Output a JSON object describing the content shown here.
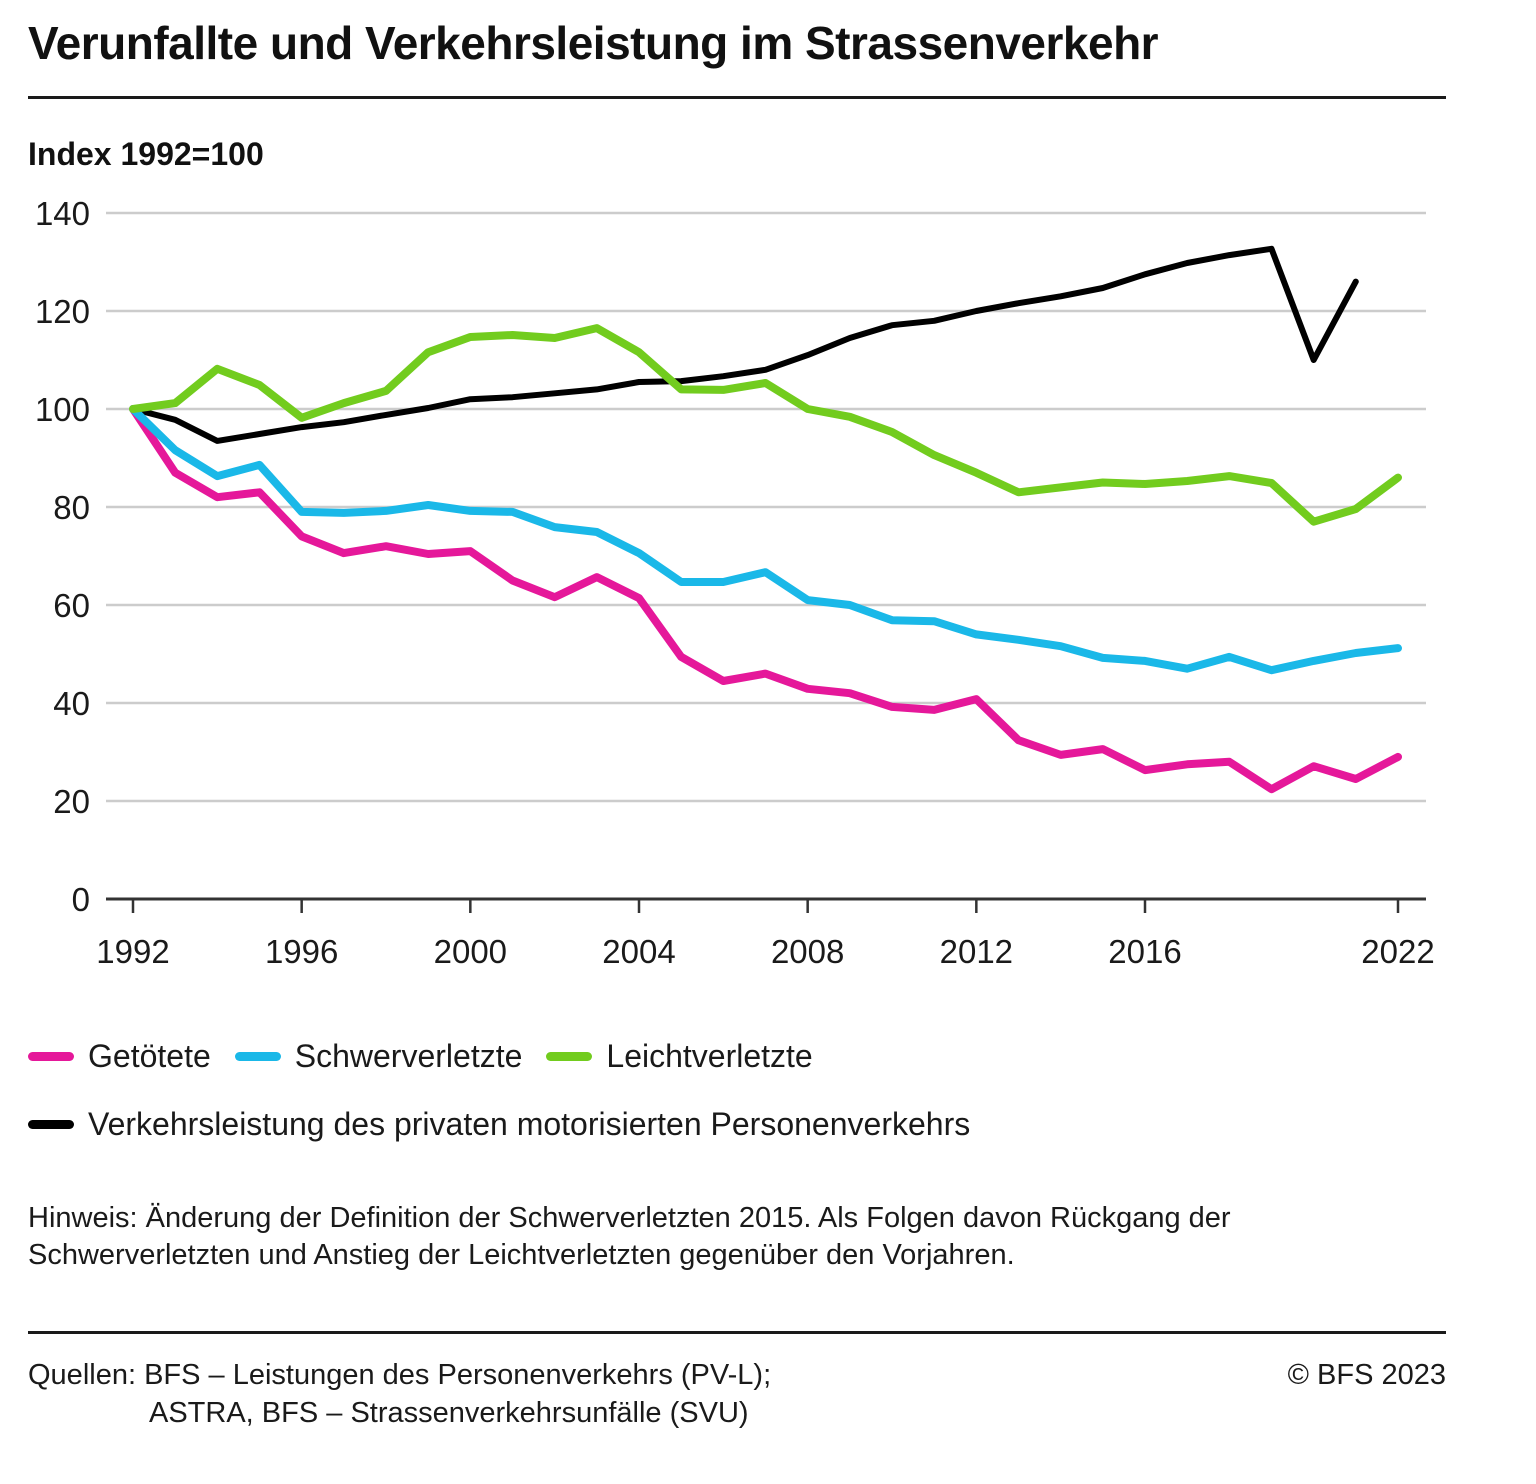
{
  "header": {
    "title": "Verunfallte und Verkehrsleistung im Strassenverkehr",
    "y_axis_label": "Index 1992=100"
  },
  "chart_data": {
    "type": "line",
    "title": "Verunfallte und Verkehrsleistung im Strassenverkehr",
    "xlabel": "",
    "ylabel": "Index 1992=100",
    "ylim": [
      0,
      140
    ],
    "xlim": [
      1992,
      2022
    ],
    "y_ticks": [
      0,
      20,
      40,
      60,
      80,
      100,
      120,
      140
    ],
    "x_ticks": [
      1992,
      1996,
      2000,
      2004,
      2008,
      2012,
      2016,
      2022
    ],
    "grid": "horizontal",
    "legend_position": "bottom",
    "x": [
      1992,
      1993,
      1994,
      1995,
      1996,
      1997,
      1998,
      1999,
      2000,
      2001,
      2002,
      2003,
      2004,
      2005,
      2006,
      2007,
      2008,
      2009,
      2010,
      2011,
      2012,
      2013,
      2014,
      2015,
      2016,
      2017,
      2018,
      2019,
      2020,
      2021,
      2022
    ],
    "series": [
      {
        "name": "Getötete",
        "color": "#e5189a",
        "values": [
          100,
          87,
          82,
          83,
          74,
          70.6,
          72,
          70.4,
          71,
          65,
          61.6,
          65.7,
          61.4,
          49.4,
          44.5,
          46,
          42.9,
          42,
          39.2,
          38.6,
          40.8,
          32.4,
          29.4,
          30.6,
          26.3,
          27.5,
          28,
          22.4,
          27.1,
          24.5,
          29
        ]
      },
      {
        "name": "Schwerverletzte",
        "color": "#1ab8e8",
        "values": [
          100,
          91.6,
          86.3,
          88.6,
          79,
          78.8,
          79.2,
          80.4,
          79.2,
          79,
          75.9,
          74.9,
          70.6,
          64.7,
          64.7,
          66.7,
          61,
          60,
          56.9,
          56.7,
          54,
          52.9,
          51.6,
          49.2,
          48.6,
          47,
          49.4,
          46.7,
          48.6,
          50.2,
          51.2
        ]
      },
      {
        "name": "Leichtverletzte",
        "color": "#72cc1e",
        "values": [
          100,
          101.2,
          108.2,
          104.9,
          98.2,
          101.2,
          103.7,
          111.6,
          114.7,
          115.1,
          114.5,
          116.5,
          111.6,
          104,
          103.9,
          105.3,
          100,
          98.4,
          95.3,
          90.6,
          87,
          83,
          84,
          85,
          84.7,
          85.3,
          86.3,
          84.9,
          77,
          79.6,
          86
        ]
      },
      {
        "name": "Verkehrsleistung des privaten motorisierten Personenverkehrs",
        "color": "#000000",
        "values": [
          100,
          97.8,
          93.5,
          94.9,
          96.3,
          97.3,
          98.8,
          100.2,
          102,
          102.4,
          103.2,
          104,
          105.5,
          105.7,
          106.7,
          108,
          111,
          114.5,
          117.1,
          118,
          120,
          121.6,
          123,
          124.7,
          127.5,
          129.8,
          131.4,
          132.7,
          110,
          126,
          null
        ]
      }
    ]
  },
  "legend": {
    "items": [
      {
        "label": "Getötete",
        "color": "#e5189a"
      },
      {
        "label": "Schwerverletzte",
        "color": "#1ab8e8"
      },
      {
        "label": "Leichtverletzte",
        "color": "#72cc1e"
      },
      {
        "label": "Verkehrsleistung des privaten motorisierten Personenverkehrs",
        "color": "#000000"
      }
    ]
  },
  "footer": {
    "note": "Hinweis: Änderung der Definition der Schwerverletzten 2015. Als Folgen davon Rückgang der Schwerverletzten und Anstieg der Leichtverletzten gegenüber den Vorjahren.",
    "sources_line1": "Quellen: BFS – Leistungen des Personenverkehrs (PV-L);",
    "sources_line2": "ASTRA, BFS – Strassenverkehrsunfälle (SVU)",
    "copyright": "© BFS 2023"
  }
}
